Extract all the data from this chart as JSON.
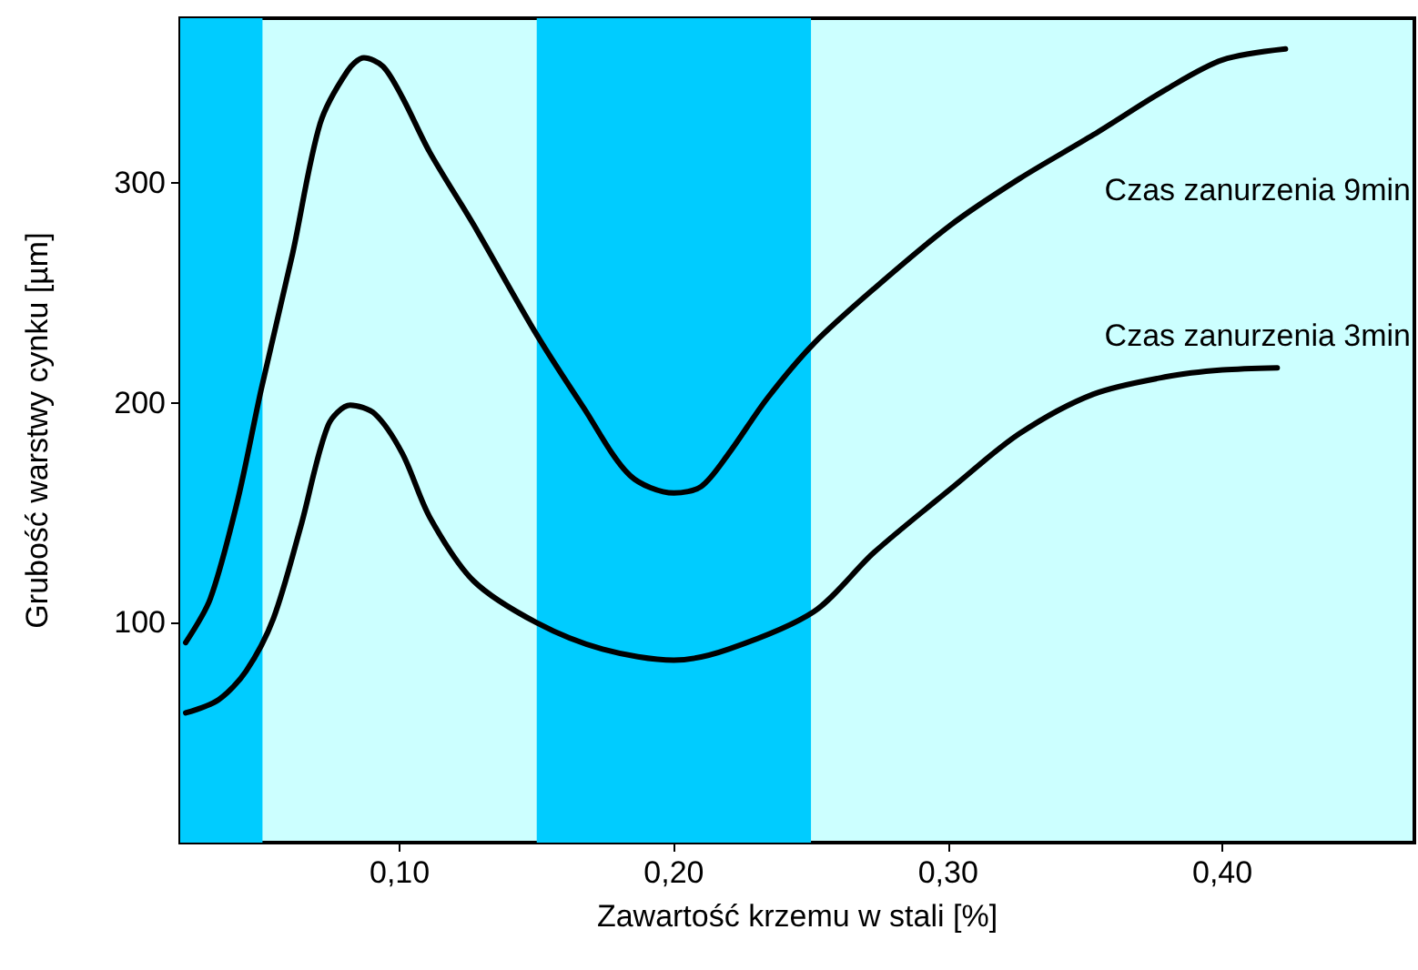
{
  "chart_data": {
    "type": "line",
    "xlabel": "Zawartość krzemu w stali [%]",
    "ylabel": "Grubość warstwy cynku [µm]",
    "xlim": [
      0.02,
      0.47
    ],
    "xticks": [
      {
        "value": 0.1,
        "label": "0,10"
      },
      {
        "value": 0.2,
        "label": "0,20"
      },
      {
        "value": 0.3,
        "label": "0,30"
      },
      {
        "value": 0.4,
        "label": "0,40"
      }
    ],
    "ylim": [
      0,
      375
    ],
    "yticks": [
      100,
      200,
      300
    ],
    "grid": false,
    "legend": false,
    "marker": "none",
    "line_style": "solid",
    "bands": [
      {
        "axis": "x",
        "from": 0.02,
        "to": 0.05,
        "color": "#00ccff"
      },
      {
        "axis": "x",
        "from": 0.15,
        "to": 0.25,
        "color": "#00ccff"
      }
    ],
    "series": [
      {
        "name": "Czas zanurzenia 9min",
        "color": "#000000",
        "x": [
          0.022,
          0.031,
          0.041,
          0.0495,
          0.061,
          0.071,
          0.081,
          0.087,
          0.094,
          0.101,
          0.111,
          0.127,
          0.15,
          0.167,
          0.184,
          0.2,
          0.21,
          0.22,
          0.234,
          0.251,
          0.273,
          0.301,
          0.326,
          0.353,
          0.38,
          0.4,
          0.423
        ],
        "values": [
          91,
          111,
          156,
          206,
          268,
          327,
          351,
          357,
          353,
          339,
          314,
          281,
          231,
          198,
          167,
          159,
          162,
          177,
          202,
          227,
          252,
          281,
          302,
          322,
          343,
          356,
          361
        ]
      },
      {
        "name": "Czas zanurzenia 3min",
        "color": "#000000",
        "x": [
          0.022,
          0.034,
          0.044,
          0.054,
          0.064,
          0.074,
          0.082,
          0.091,
          0.101,
          0.111,
          0.127,
          0.15,
          0.174,
          0.2,
          0.22,
          0.251,
          0.273,
          0.301,
          0.326,
          0.353,
          0.38,
          0.4,
          0.42
        ],
        "values": [
          59,
          65,
          78,
          102,
          144,
          190,
          199,
          195,
          177,
          148,
          119,
          100,
          88,
          83,
          88,
          105,
          132,
          161,
          186,
          204,
          212,
          215,
          216
        ]
      }
    ]
  }
}
